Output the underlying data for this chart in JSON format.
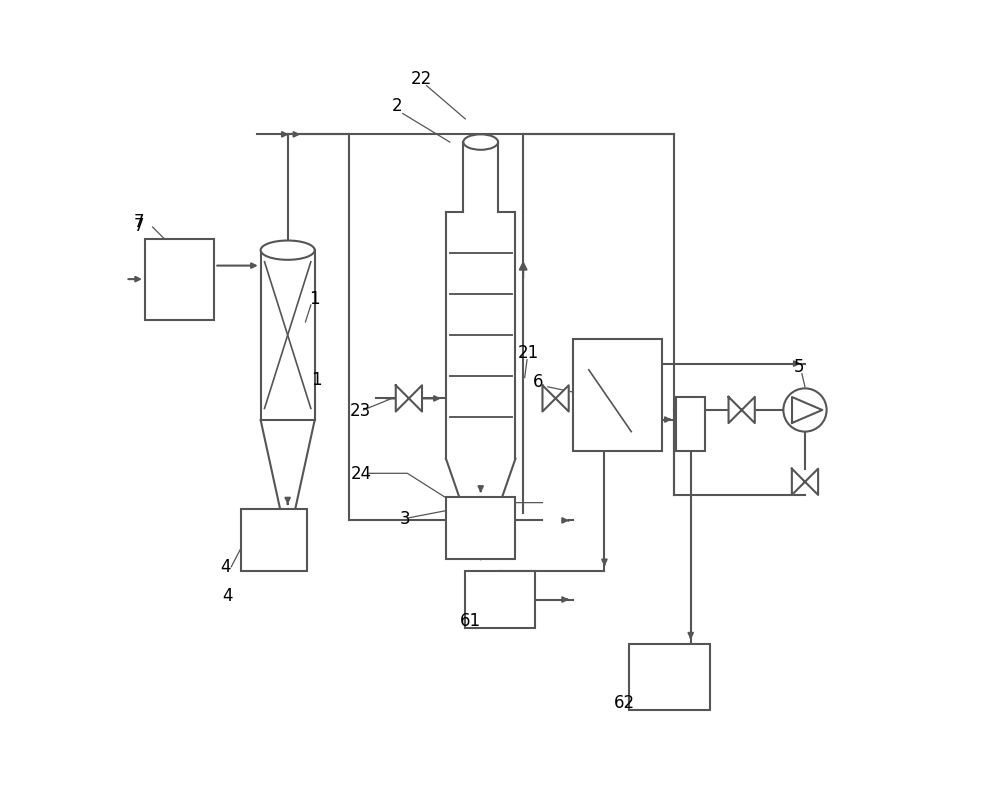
{
  "bg_color": "#ffffff",
  "line_color": "#555555",
  "line_width": 1.5
}
